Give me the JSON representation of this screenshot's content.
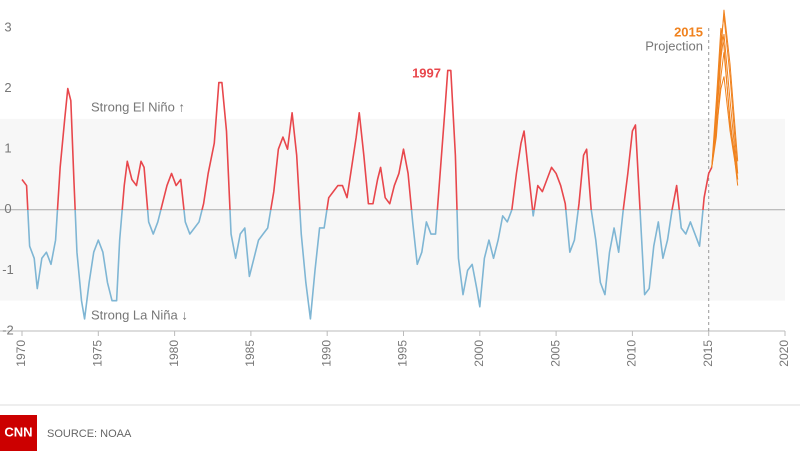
{
  "chart_data": {
    "type": "line",
    "xlim": [
      1970,
      2020
    ],
    "xticks": [
      1970,
      1975,
      1980,
      1985,
      1990,
      1995,
      2000,
      2005,
      2010,
      2015,
      2020
    ],
    "ylim": [
      -2,
      3
    ],
    "yticks": [
      -2,
      -1,
      0,
      1,
      2,
      3
    ],
    "hline": 0,
    "band": [
      -1.5,
      1.5
    ],
    "vline": 2015,
    "positive_color": "#e8474c",
    "negative_color": "#7fb6d4",
    "x": [
      1970.0,
      1970.3,
      1970.5,
      1970.8,
      1971.0,
      1971.3,
      1971.6,
      1971.9,
      1972.2,
      1972.5,
      1972.8,
      1973.0,
      1973.2,
      1973.4,
      1973.6,
      1973.9,
      1974.1,
      1974.4,
      1974.7,
      1975.0,
      1975.3,
      1975.6,
      1975.9,
      1976.2,
      1976.4,
      1976.7,
      1976.9,
      1977.2,
      1977.5,
      1977.8,
      1978.0,
      1978.3,
      1978.6,
      1978.9,
      1979.2,
      1979.5,
      1979.8,
      1980.1,
      1980.4,
      1980.7,
      1981.0,
      1981.3,
      1981.6,
      1981.9,
      1982.2,
      1982.6,
      1982.9,
      1983.1,
      1983.4,
      1983.7,
      1984.0,
      1984.3,
      1984.6,
      1984.9,
      1985.2,
      1985.5,
      1985.8,
      1986.1,
      1986.5,
      1986.8,
      1987.1,
      1987.4,
      1987.7,
      1988.0,
      1988.3,
      1988.6,
      1988.9,
      1989.2,
      1989.5,
      1989.8,
      1990.1,
      1990.4,
      1990.7,
      1991.0,
      1991.3,
      1991.6,
      1991.9,
      1992.1,
      1992.4,
      1992.7,
      1993.0,
      1993.3,
      1993.5,
      1993.8,
      1994.1,
      1994.4,
      1994.7,
      1995.0,
      1995.3,
      1995.6,
      1995.9,
      1996.2,
      1996.5,
      1996.8,
      1997.1,
      1997.4,
      1997.7,
      1997.9,
      1998.1,
      1998.4,
      1998.6,
      1998.9,
      1999.2,
      1999.5,
      1999.8,
      2000.0,
      2000.3,
      2000.6,
      2000.9,
      2001.2,
      2001.5,
      2001.8,
      2002.1,
      2002.4,
      2002.7,
      2002.9,
      2003.2,
      2003.5,
      2003.8,
      2004.1,
      2004.4,
      2004.7,
      2005.0,
      2005.3,
      2005.6,
      2005.9,
      2006.2,
      2006.5,
      2006.8,
      2007.0,
      2007.3,
      2007.6,
      2007.9,
      2008.2,
      2008.5,
      2008.8,
      2009.1,
      2009.4,
      2009.7,
      2010.0,
      2010.2,
      2010.5,
      2010.8,
      2011.1,
      2011.4,
      2011.7,
      2012.0,
      2012.3,
      2012.6,
      2012.9,
      2013.2,
      2013.5,
      2013.8,
      2014.1,
      2014.4,
      2014.7,
      2015.0,
      2015.2
    ],
    "values": [
      0.5,
      0.4,
      -0.6,
      -0.8,
      -1.3,
      -0.8,
      -0.7,
      -0.9,
      -0.5,
      0.7,
      1.5,
      2.0,
      1.8,
      0.5,
      -0.7,
      -1.5,
      -1.8,
      -1.2,
      -0.7,
      -0.5,
      -0.7,
      -1.2,
      -1.5,
      -1.5,
      -0.5,
      0.4,
      0.8,
      0.5,
      0.4,
      0.8,
      0.7,
      -0.2,
      -0.4,
      -0.2,
      0.1,
      0.4,
      0.6,
      0.4,
      0.5,
      -0.2,
      -0.4,
      -0.3,
      -0.2,
      0.1,
      0.6,
      1.1,
      2.1,
      2.1,
      1.3,
      -0.4,
      -0.8,
      -0.4,
      -0.3,
      -1.1,
      -0.8,
      -0.5,
      -0.4,
      -0.3,
      0.3,
      1.0,
      1.2,
      1.0,
      1.6,
      0.9,
      -0.4,
      -1.2,
      -1.8,
      -1.0,
      -0.3,
      -0.3,
      0.2,
      0.3,
      0.4,
      0.4,
      0.2,
      0.7,
      1.2,
      1.6,
      0.9,
      0.1,
      0.1,
      0.5,
      0.7,
      0.2,
      0.1,
      0.4,
      0.6,
      1.0,
      0.6,
      -0.2,
      -0.9,
      -0.7,
      -0.2,
      -0.4,
      -0.4,
      0.6,
      1.6,
      2.3,
      2.3,
      0.9,
      -0.8,
      -1.4,
      -1.0,
      -0.9,
      -1.3,
      -1.6,
      -0.8,
      -0.5,
      -0.8,
      -0.5,
      -0.1,
      -0.2,
      0.0,
      0.6,
      1.1,
      1.3,
      0.6,
      -0.1,
      0.4,
      0.3,
      0.5,
      0.7,
      0.6,
      0.4,
      0.1,
      -0.7,
      -0.5,
      0.1,
      0.9,
      1.0,
      0.0,
      -0.5,
      -1.2,
      -1.4,
      -0.7,
      -0.3,
      -0.7,
      0.0,
      0.6,
      1.3,
      1.4,
      0.0,
      -1.4,
      -1.3,
      -0.6,
      -0.2,
      -0.8,
      -0.5,
      0.0,
      0.4,
      -0.3,
      -0.4,
      -0.2,
      -0.4,
      -0.6,
      0.2,
      0.6,
      0.7
    ],
    "projection": {
      "color": "#f0821e",
      "x": [
        2015.2,
        2015.5,
        2015.8,
        2016.0,
        2016.4,
        2016.9
      ],
      "series": [
        {
          "values": [
            0.7,
            1.6,
            2.8,
            3.2,
            2.2,
            0.6
          ]
        },
        {
          "values": [
            0.7,
            1.4,
            2.5,
            2.9,
            1.8,
            0.5
          ]
        },
        {
          "values": [
            0.7,
            1.2,
            2.2,
            2.6,
            1.5,
            0.4
          ]
        },
        {
          "values": [
            0.7,
            1.8,
            3.0,
            2.7,
            1.4,
            0.6
          ]
        },
        {
          "values": [
            0.7,
            1.3,
            2.0,
            2.2,
            1.3,
            0.5
          ]
        },
        {
          "values": [
            0.7,
            1.5,
            2.6,
            3.3,
            2.4,
            0.8
          ]
        }
      ]
    },
    "annotations": {
      "el_nino": "Strong El Niño ↑",
      "la_nina": "Strong La Niña ↓",
      "peak_1997": "1997",
      "year_2015": "2015",
      "projection": "Projection"
    }
  },
  "footer": {
    "logo": "CNN",
    "source": "SOURCE: NOAA"
  }
}
